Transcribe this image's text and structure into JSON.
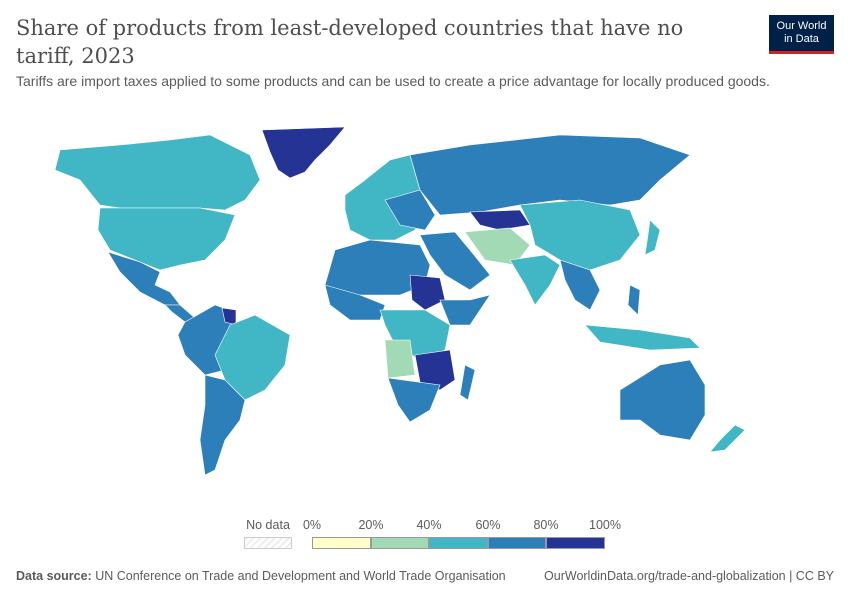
{
  "header": {
    "title": "Share of products from least-developed countries that have no tariff, 2023",
    "subtitle": "Tariffs are import taxes applied to some products and can be used to create a price advantage for locally produced goods.",
    "logo": "Our World in Data"
  },
  "legend": {
    "no_data_label": "No data",
    "ticks": [
      "0%",
      "20%",
      "40%",
      "60%",
      "80%",
      "100%"
    ],
    "bins": [
      {
        "range": [
          0,
          20
        ],
        "color": "#ffffcc"
      },
      {
        "range": [
          20,
          40
        ],
        "color": "#a1dab4"
      },
      {
        "range": [
          40,
          60
        ],
        "color": "#41b6c4"
      },
      {
        "range": [
          60,
          80
        ],
        "color": "#2c7fb8"
      },
      {
        "range": [
          80,
          100
        ],
        "color": "#253494"
      }
    ],
    "no_data_color": "#eeeeee"
  },
  "footer": {
    "source_label": "Data source:",
    "source": "UN Conference on Trade and Development and World Trade Organisation",
    "url": "OurWorldinData.org/trade-and-globalization | CC BY"
  }
}
